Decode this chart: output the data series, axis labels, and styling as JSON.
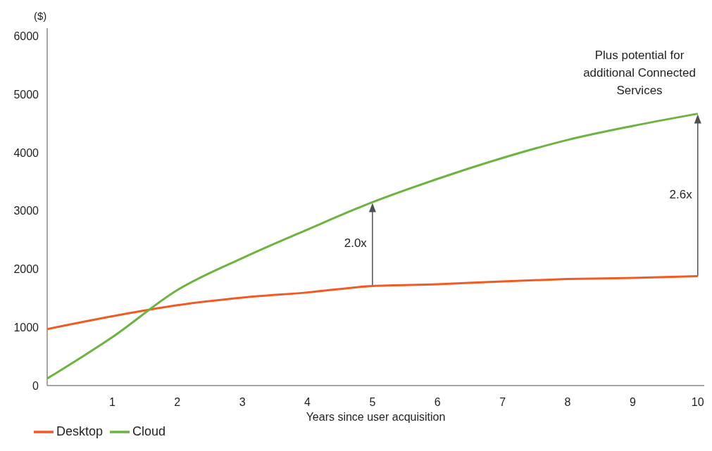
{
  "chart_data": {
    "type": "line",
    "xlabel": "Years since user acquisition",
    "ylabel": "($)",
    "x": [
      0,
      1,
      2,
      3,
      4,
      5,
      6,
      7,
      8,
      9,
      10
    ],
    "series": [
      {
        "name": "Desktop",
        "color": "#f05a23",
        "values": [
          970,
          1190,
          1380,
          1510,
          1600,
          1710,
          1740,
          1790,
          1830,
          1850,
          1880
        ]
      },
      {
        "name": "Cloud",
        "color": "#6db33f",
        "values": [
          120,
          830,
          1640,
          2190,
          2680,
          3150,
          3550,
          3910,
          4220,
          4460,
          4670
        ]
      }
    ],
    "xlim": [
      0,
      10.1
    ],
    "xticks": [
      1,
      2,
      3,
      4,
      5,
      6,
      7,
      8,
      9,
      10
    ],
    "ylim": [
      0,
      6140
    ],
    "yticks": [
      0,
      1000,
      2000,
      3000,
      4000,
      5000,
      6000
    ],
    "annotations": [
      "2.0x",
      "2.6x",
      "Plus potential for additional Connected Services"
    ],
    "grid": false,
    "legend": "bottom left",
    "marker": "none",
    "line_style": "solid"
  }
}
